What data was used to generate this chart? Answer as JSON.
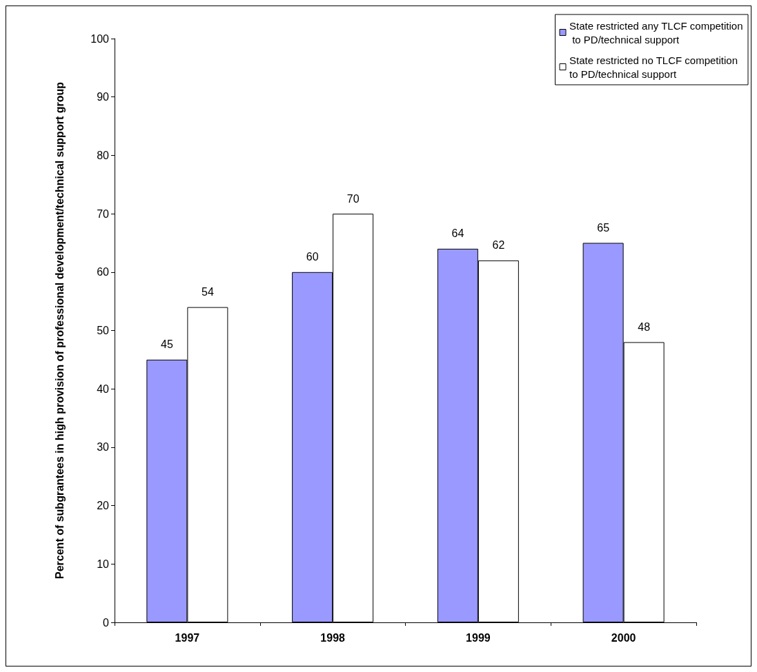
{
  "chart_data": {
    "type": "bar",
    "ylabel": "Percent of subgrantees in high provision of professional development/technical support group",
    "categories": [
      "1997",
      "1998",
      "1999",
      "2000"
    ],
    "series": [
      {
        "name": "State restricted any TLCF competition to PD/technical support",
        "color": "#9999ff",
        "values": [
          45,
          60,
          64,
          65
        ]
      },
      {
        "name": "State restricted no TLCF competition to PD/technical support",
        "color": "#ffffff",
        "values": [
          54,
          70,
          62,
          48
        ]
      }
    ],
    "ylim": [
      0,
      100
    ],
    "yticks": [
      0,
      10,
      20,
      30,
      40,
      50,
      60,
      70,
      80,
      90,
      100
    ],
    "grid": false,
    "legend": "top right",
    "data_labels": true
  }
}
